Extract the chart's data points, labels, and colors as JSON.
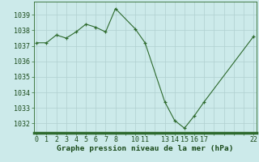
{
  "x": [
    0,
    1,
    2,
    3,
    4,
    5,
    6,
    7,
    8,
    10,
    11,
    13,
    14,
    15,
    16,
    17,
    22
  ],
  "y": [
    1037.2,
    1037.2,
    1037.7,
    1037.5,
    1037.9,
    1038.4,
    1038.2,
    1037.9,
    1039.4,
    1038.1,
    1037.2,
    1033.4,
    1032.2,
    1031.7,
    1032.5,
    1033.4,
    1037.6
  ],
  "xticks": [
    0,
    1,
    2,
    3,
    4,
    5,
    6,
    7,
    8,
    10,
    11,
    13,
    14,
    15,
    16,
    17,
    22
  ],
  "xticks_grid": [
    0,
    1,
    2,
    3,
    4,
    5,
    6,
    7,
    8,
    9,
    10,
    11,
    12,
    13,
    14,
    15,
    16,
    17,
    18,
    19,
    20,
    21,
    22
  ],
  "yticks": [
    1032,
    1033,
    1034,
    1035,
    1036,
    1037,
    1038,
    1039
  ],
  "ylim": [
    1031.4,
    1039.85
  ],
  "xlim": [
    -0.3,
    22.3
  ],
  "line_color": "#2d6a2d",
  "marker_color": "#2d6a2d",
  "bg_color": "#cceaea",
  "grid_color": "#b0d0d0",
  "xlabel": "Graphe pression niveau de la mer (hPa)",
  "xlabel_color": "#1a4a1a",
  "xlabel_fontsize": 6.8,
  "tick_fontsize": 6.0,
  "tick_color": "#1a4a1a",
  "axis_color": "#2d6a2d",
  "bottom_bar_color": "#2d6a2d",
  "bottom_bar_height": 0.018
}
